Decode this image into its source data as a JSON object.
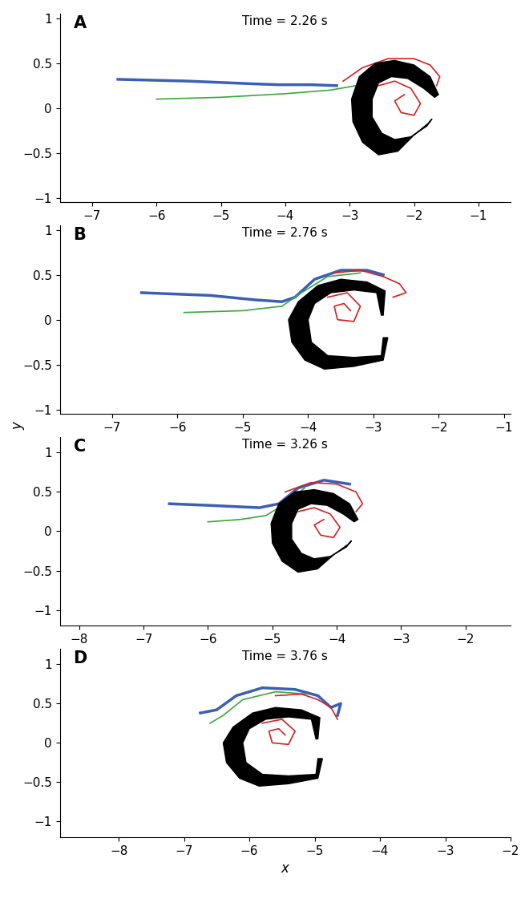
{
  "chart_data": [
    {
      "type": "line",
      "label": "A",
      "title": "Time = 2.26 s",
      "xlim": [
        -7.5,
        -0.5
      ],
      "xticks": [
        {
          "value": -7,
          "label": "−7"
        },
        {
          "value": -6,
          "label": "−6"
        },
        {
          "value": -5,
          "label": "−5"
        },
        {
          "value": -4,
          "label": "−4"
        },
        {
          "value": -3,
          "label": "−3"
        },
        {
          "value": -2,
          "label": "−2"
        },
        {
          "value": -1,
          "label": "−1"
        }
      ],
      "ylim": [
        -1.05,
        1.05
      ],
      "yticks": [
        {
          "value": -1,
          "label": "−1"
        },
        {
          "value": -0.5,
          "label": "−0.5"
        },
        0,
        0.5,
        1
      ],
      "series": [
        {
          "type": "fill",
          "color": "#000000",
          "x": [
            -1.62,
            -1.75,
            -2.0,
            -2.3,
            -2.6,
            -2.85,
            -2.97,
            -2.95,
            -2.8,
            -2.55,
            -2.25,
            -2.0,
            -1.78,
            -1.72,
            -1.8,
            -2.05,
            -2.3,
            -2.5,
            -2.65,
            -2.65,
            -2.55,
            -2.35,
            -2.1,
            -1.85,
            -1.68
          ],
          "y": [
            0.15,
            0.35,
            0.48,
            0.53,
            0.5,
            0.35,
            0.1,
            -0.15,
            -0.38,
            -0.52,
            -0.48,
            -0.3,
            -0.17,
            -0.12,
            -0.2,
            -0.32,
            -0.35,
            -0.28,
            -0.1,
            0.1,
            0.28,
            0.35,
            0.33,
            0.22,
            0.12
          ]
        },
        {
          "type": "line",
          "color": "#3a5fb5",
          "x": [
            -6.6,
            -5.5,
            -4.5,
            -4.1,
            -3.6,
            -3.2
          ],
          "y": [
            0.32,
            0.3,
            0.27,
            0.26,
            0.26,
            0.25
          ]
        },
        {
          "type": "line",
          "color": "#3aa83a",
          "x": [
            -6.0,
            -5.0,
            -4.0,
            -3.3,
            -2.9
          ],
          "y": [
            0.1,
            0.12,
            0.16,
            0.2,
            0.25
          ]
        },
        {
          "type": "line",
          "color": "#d62020",
          "x": [
            -3.1,
            -2.8,
            -2.4,
            -2.0,
            -1.75,
            -1.6,
            -1.65
          ],
          "y": [
            0.3,
            0.45,
            0.55,
            0.55,
            0.48,
            0.35,
            0.25
          ]
        },
        {
          "type": "line",
          "color": "#d62020",
          "x": [
            -2.55,
            -2.3,
            -2.05,
            -1.9,
            -2.0,
            -2.2,
            -2.3,
            -2.15
          ],
          "y": [
            0.25,
            0.3,
            0.22,
            0.05,
            -0.08,
            -0.05,
            0.08,
            0.15
          ]
        }
      ]
    },
    {
      "type": "line",
      "label": "B",
      "title": "Time = 2.76 s",
      "ylabel": "y",
      "xlim": [
        -7.8,
        -0.9
      ],
      "xticks": [
        {
          "value": -7,
          "label": "−7"
        },
        {
          "value": -6,
          "label": "−6"
        },
        {
          "value": -5,
          "label": "−5"
        },
        {
          "value": -4,
          "label": "−4"
        },
        {
          "value": -3,
          "label": "−3"
        },
        {
          "value": -2,
          "label": "−2"
        },
        {
          "value": -1,
          "label": "−1"
        }
      ],
      "ylim": [
        -1.05,
        1.05
      ],
      "yticks": [
        {
          "value": -1,
          "label": "−1"
        },
        {
          "value": -0.5,
          "label": "−0.5"
        },
        0,
        0.5,
        1
      ],
      "series": [
        {
          "type": "fill",
          "color": "#000000",
          "x": [
            -2.85,
            -2.82,
            -3.1,
            -3.5,
            -3.85,
            -4.15,
            -4.3,
            -4.25,
            -4.05,
            -3.75,
            -3.3,
            -2.85,
            -2.78,
            -2.85,
            -2.88,
            -3.3,
            -3.7,
            -3.95,
            -4.0,
            -3.9,
            -3.65,
            -3.3,
            -2.95,
            -2.88
          ],
          "y": [
            0.05,
            0.32,
            0.42,
            0.45,
            0.38,
            0.2,
            0.0,
            -0.25,
            -0.45,
            -0.55,
            -0.52,
            -0.45,
            -0.2,
            -0.2,
            -0.4,
            -0.42,
            -0.4,
            -0.25,
            0.0,
            0.18,
            0.3,
            0.33,
            0.3,
            0.05
          ]
        },
        {
          "type": "line",
          "color": "#3a5fb5",
          "x": [
            -6.55,
            -5.5,
            -4.8,
            -4.4,
            -4.2,
            -3.9,
            -3.5,
            -3.1,
            -2.85
          ],
          "y": [
            0.3,
            0.27,
            0.22,
            0.2,
            0.25,
            0.45,
            0.55,
            0.55,
            0.5
          ]
        },
        {
          "type": "line",
          "color": "#3aa83a",
          "x": [
            -5.9,
            -5.0,
            -4.4,
            -4.1,
            -3.7,
            -3.2
          ],
          "y": [
            0.08,
            0.1,
            0.15,
            0.3,
            0.48,
            0.52
          ]
        },
        {
          "type": "line",
          "color": "#d62020",
          "x": [
            -3.6,
            -3.2,
            -2.85,
            -2.6,
            -2.5,
            -2.7
          ],
          "y": [
            0.52,
            0.55,
            0.48,
            0.4,
            0.3,
            0.25
          ]
        },
        {
          "type": "line",
          "color": "#d62020",
          "x": [
            -3.7,
            -3.4,
            -3.2,
            -3.3,
            -3.55,
            -3.6,
            -3.45,
            -3.35
          ],
          "y": [
            0.25,
            0.3,
            0.15,
            -0.02,
            0.0,
            0.15,
            0.18,
            0.1
          ]
        }
      ]
    },
    {
      "type": "line",
      "label": "C",
      "title": "Time = 3.26 s",
      "xlim": [
        -8.3,
        -1.3
      ],
      "xticks": [
        {
          "value": -8,
          "label": "−8"
        },
        {
          "value": -7,
          "label": "−7"
        },
        {
          "value": -6,
          "label": "−6"
        },
        {
          "value": -5,
          "label": "−5"
        },
        {
          "value": -4,
          "label": "−4"
        },
        {
          "value": -3,
          "label": "−3"
        },
        {
          "value": -2,
          "label": "−2"
        }
      ],
      "ylim": [
        -1.2,
        1.2
      ],
      "yticks": [
        {
          "value": -1,
          "label": "−1"
        },
        {
          "value": -0.5,
          "label": "−0.5"
        },
        0,
        0.5,
        1
      ],
      "series": [
        {
          "type": "fill",
          "color": "#000000",
          "x": [
            -3.67,
            -3.8,
            -4.05,
            -4.35,
            -4.65,
            -4.9,
            -5.02,
            -5.0,
            -4.85,
            -4.6,
            -4.3,
            -4.05,
            -3.83,
            -3.77,
            -3.85,
            -4.1,
            -4.35,
            -4.55,
            -4.7,
            -4.7,
            -4.6,
            -4.4,
            -4.15,
            -3.9,
            -3.73
          ],
          "y": [
            0.15,
            0.35,
            0.48,
            0.53,
            0.5,
            0.35,
            0.1,
            -0.15,
            -0.38,
            -0.52,
            -0.48,
            -0.3,
            -0.17,
            -0.12,
            -0.2,
            -0.32,
            -0.35,
            -0.28,
            -0.1,
            0.1,
            0.28,
            0.35,
            0.33,
            0.22,
            0.12
          ]
        },
        {
          "type": "line",
          "color": "#3a5fb5",
          "x": [
            -6.6,
            -6.0,
            -5.2,
            -4.9,
            -4.6,
            -4.2,
            -3.8
          ],
          "y": [
            0.35,
            0.33,
            0.3,
            0.35,
            0.55,
            0.65,
            0.6
          ]
        },
        {
          "type": "line",
          "color": "#3aa83a",
          "x": [
            -6.0,
            -5.5,
            -5.1,
            -4.8,
            -4.5
          ],
          "y": [
            0.12,
            0.15,
            0.2,
            0.35,
            0.55
          ]
        },
        {
          "type": "line",
          "color": "#d62020",
          "x": [
            -4.8,
            -4.4,
            -4.0,
            -3.7,
            -3.6,
            -3.7
          ],
          "y": [
            0.5,
            0.62,
            0.6,
            0.5,
            0.35,
            0.25
          ]
        },
        {
          "type": "line",
          "color": "#d62020",
          "x": [
            -4.6,
            -4.35,
            -4.1,
            -3.95,
            -4.05,
            -4.25,
            -4.35,
            -4.2
          ],
          "y": [
            0.25,
            0.3,
            0.22,
            0.05,
            -0.08,
            -0.05,
            0.08,
            0.15
          ]
        }
      ]
    },
    {
      "type": "line",
      "label": "D",
      "title": "Time = 3.76 s",
      "xlabel": "x",
      "xlim": [
        -8.9,
        -2.0
      ],
      "xticks": [
        {
          "value": -8,
          "label": "−8"
        },
        {
          "value": -7,
          "label": "−7"
        },
        {
          "value": -6,
          "label": "−6"
        },
        {
          "value": -5,
          "label": "−5"
        },
        {
          "value": -4,
          "label": "−4"
        },
        {
          "value": -3,
          "label": "−3"
        },
        {
          "value": -2,
          "label": "−2"
        }
      ],
      "ylim": [
        -1.2,
        1.2
      ],
      "yticks": [
        {
          "value": -1,
          "label": "−1"
        },
        {
          "value": -0.5,
          "label": "−0.5"
        },
        0,
        0.5,
        1
      ],
      "series": [
        {
          "type": "fill",
          "color": "#000000",
          "x": [
            -4.95,
            -4.92,
            -5.2,
            -5.6,
            -5.95,
            -6.25,
            -6.4,
            -6.35,
            -6.15,
            -5.85,
            -5.4,
            -4.95,
            -4.88,
            -4.95,
            -4.98,
            -5.4,
            -5.8,
            -6.05,
            -6.1,
            -6.0,
            -5.75,
            -5.4,
            -5.05,
            -4.98
          ],
          "y": [
            0.05,
            0.32,
            0.42,
            0.45,
            0.38,
            0.2,
            0.0,
            -0.25,
            -0.45,
            -0.55,
            -0.52,
            -0.45,
            -0.2,
            -0.2,
            -0.4,
            -0.42,
            -0.4,
            -0.25,
            0.0,
            0.18,
            0.3,
            0.33,
            0.3,
            0.05
          ]
        },
        {
          "type": "line",
          "color": "#3a5fb5",
          "x": [
            -6.75,
            -6.5,
            -6.2,
            -5.8,
            -5.3,
            -4.95,
            -4.75,
            -4.6,
            -4.65
          ],
          "y": [
            0.38,
            0.42,
            0.6,
            0.7,
            0.68,
            0.6,
            0.45,
            0.5,
            0.35
          ]
        },
        {
          "type": "line",
          "color": "#3aa83a",
          "x": [
            -6.6,
            -6.4,
            -6.1,
            -5.6,
            -5.1
          ],
          "y": [
            0.25,
            0.35,
            0.55,
            0.65,
            0.62
          ]
        },
        {
          "type": "line",
          "color": "#d62020",
          "x": [
            -5.6,
            -5.2,
            -4.95,
            -4.75,
            -4.65
          ],
          "y": [
            0.6,
            0.62,
            0.55,
            0.45,
            0.3
          ]
        },
        {
          "type": "line",
          "color": "#d62020",
          "x": [
            -5.8,
            -5.5,
            -5.3,
            -5.4,
            -5.65,
            -5.7,
            -5.55,
            -5.45
          ],
          "y": [
            0.25,
            0.3,
            0.15,
            -0.02,
            0.0,
            0.15,
            0.18,
            0.1
          ]
        }
      ]
    }
  ]
}
